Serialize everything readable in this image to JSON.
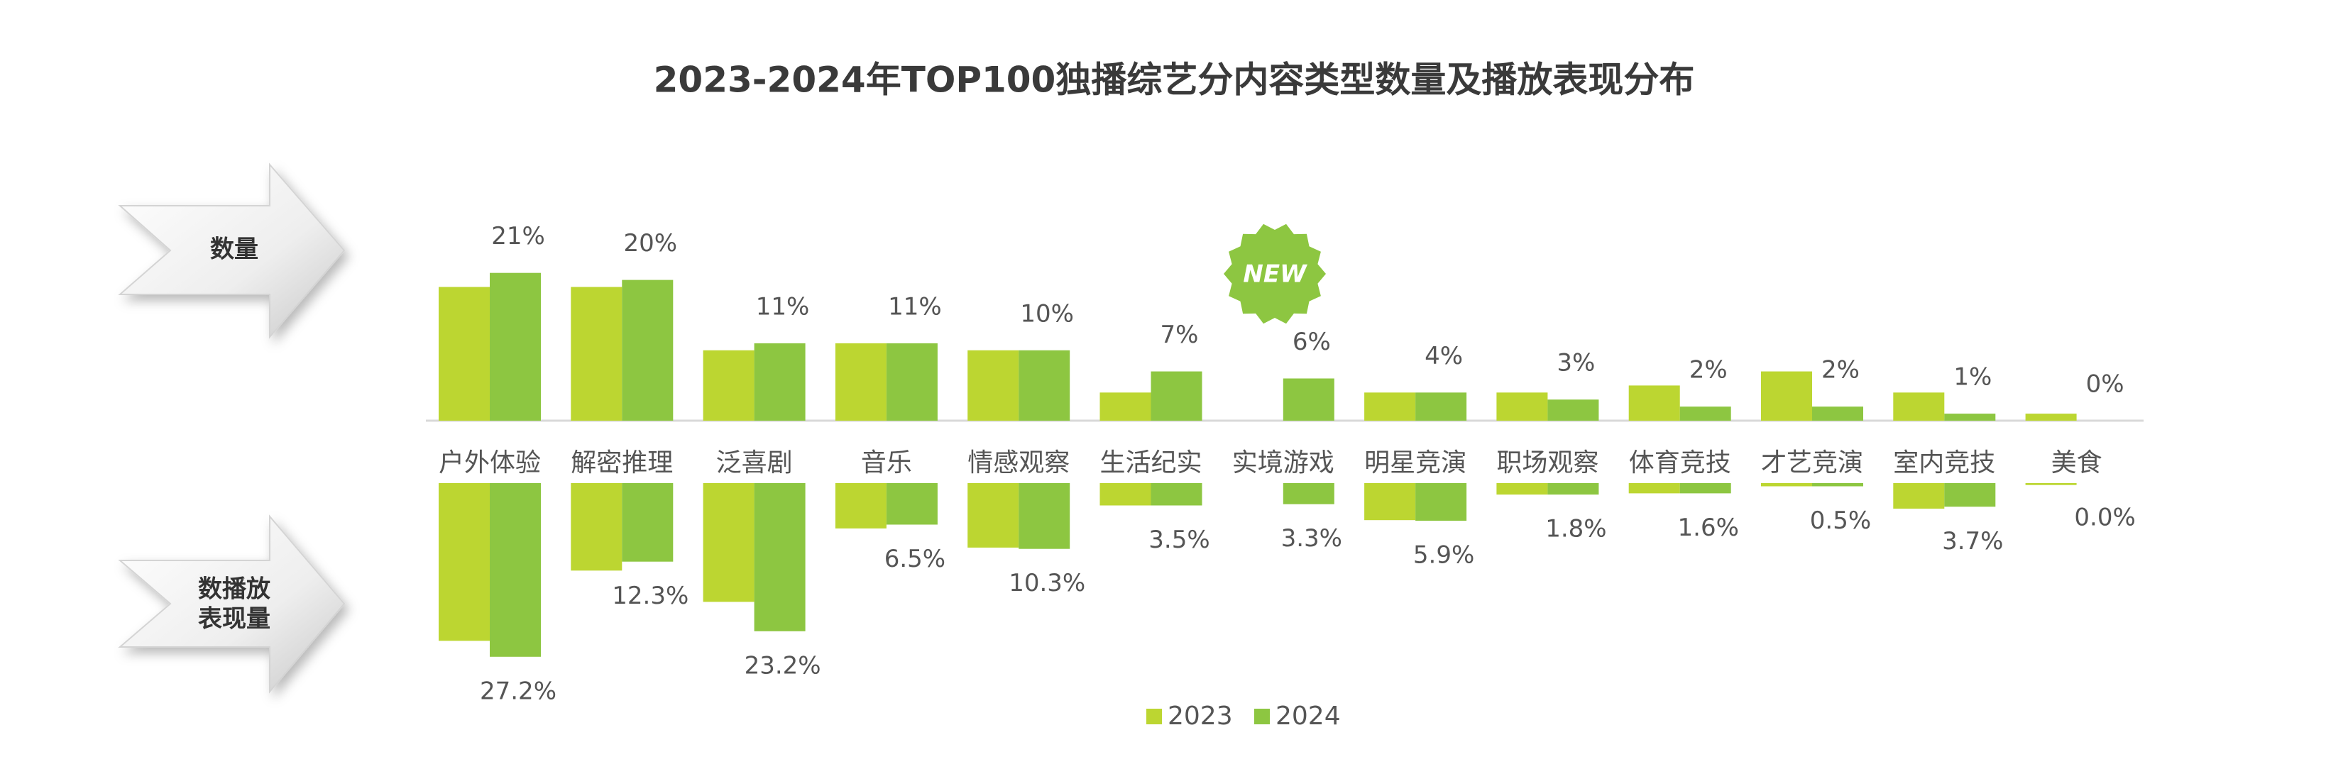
{
  "chart_data": {
    "type": "bar",
    "title": "2023-2024年TOP100独播综艺分内容类型数量及播放表现分布",
    "annotation": "NEW",
    "categories": [
      "户外体验",
      "解密推理",
      "泛喜剧",
      "音乐",
      "情感观察",
      "生活纪实",
      "实境游戏",
      "明星竞演",
      "职场观察",
      "体育竞技",
      "才艺竞演",
      "室内竞技",
      "美食"
    ],
    "series": [
      {
        "name": "2023",
        "color": "#bcd631"
      },
      {
        "name": "2024",
        "color": "#8dc641"
      }
    ],
    "panels": [
      {
        "label": [
          "数量"
        ],
        "direction": "up",
        "ylim": [
          0,
          25
        ],
        "series": [
          {
            "values": [
              19,
              19,
              10,
              11,
              10,
              4,
              null,
              4,
              4,
              5,
              7,
              4,
              1
            ]
          },
          {
            "values": [
              21,
              20,
              11,
              11,
              10,
              7,
              6,
              4,
              3,
              2,
              2,
              1,
              0
            ],
            "value_labels": [
              "21%",
              "20%",
              "11%",
              "11%",
              "10%",
              "7%",
              "6%",
              "4%",
              "3%",
              "2%",
              "2%",
              "1%",
              "0%"
            ]
          }
        ]
      },
      {
        "label": [
          "数播放",
          "表现量"
        ],
        "direction": "down",
        "ylim": [
          0,
          30
        ],
        "series": [
          {
            "values": [
              24.7,
              13.7,
              18.6,
              7.1,
              10.1,
              3.5,
              null,
              5.8,
              1.8,
              1.6,
              0.5,
              4.0,
              0.3
            ]
          },
          {
            "values": [
              27.2,
              12.3,
              23.2,
              6.5,
              10.3,
              3.5,
              3.3,
              5.9,
              1.8,
              1.6,
              0.5,
              3.7,
              0.0
            ],
            "value_labels": [
              "27.2%",
              "12.3%",
              "23.2%",
              "6.5%",
              "10.3%",
              "3.5%",
              "3.3%",
              "5.9%",
              "1.8%",
              "1.6%",
              "0.5%",
              "3.7%",
              "0.0%"
            ]
          }
        ]
      }
    ]
  }
}
